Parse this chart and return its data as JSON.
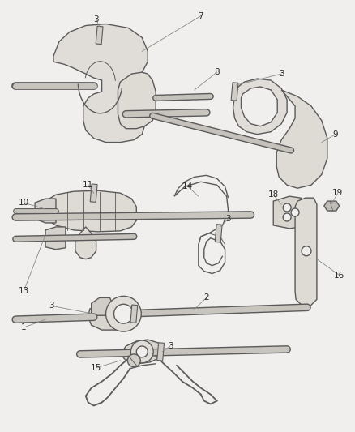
{
  "bg_color": "#f0efed",
  "line_color": "#5a5a5a",
  "text_color": "#2a2a2a",
  "fig_width": 4.38,
  "fig_height": 5.33,
  "dpi": 100,
  "label_fontsize": 7.5,
  "leader_color": "#888888",
  "leader_lw": 0.6,
  "part_lw": 1.0,
  "rod_lw": 3.5
}
